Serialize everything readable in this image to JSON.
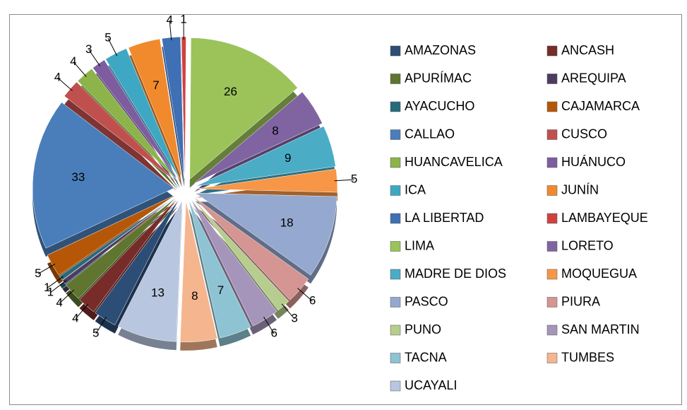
{
  "chart_data": {
    "type": "pie",
    "categories": [
      "AMAZONAS",
      "ANCASH",
      "APURÍMAC",
      "AREQUIPA",
      "AYACUCHO",
      "CAJAMARCA",
      "CALLAO",
      "CUSCO",
      "HUANCAVELICA",
      "HUÁNUCO",
      "ICA",
      "JUNÍN",
      "LA LIBERTAD",
      "LAMBAYEQUE",
      "LIMA",
      "LORETO",
      "MADRE DE DIOS",
      "MOQUEGUA",
      "PASCO",
      "PIURA",
      "PUNO",
      "SAN MARTIN",
      "TACNA",
      "TUMBES",
      "UCAYALI"
    ],
    "values": [
      5,
      4,
      4,
      1,
      1,
      5,
      33,
      4,
      4,
      3,
      5,
      7,
      4,
      1,
      26,
      8,
      9,
      5,
      18,
      6,
      3,
      6,
      7,
      8,
      13
    ],
    "colors": [
      "#2C4D75",
      "#772C2A",
      "#5F7530",
      "#4D3B62",
      "#276A7C",
      "#B65708",
      "#4A7EBB",
      "#C0504D",
      "#8DB44A",
      "#7E5CA0",
      "#3EA8C4",
      "#F08A2C",
      "#3F6FB4",
      "#D0413E",
      "#9BC35A",
      "#8064A2",
      "#4BACC6",
      "#F79646",
      "#95A8CF",
      "#D49593",
      "#B7CD8F",
      "#A595BA",
      "#8EC3D3",
      "#F5B58E",
      "#B8C6E0"
    ],
    "legend": "right"
  }
}
